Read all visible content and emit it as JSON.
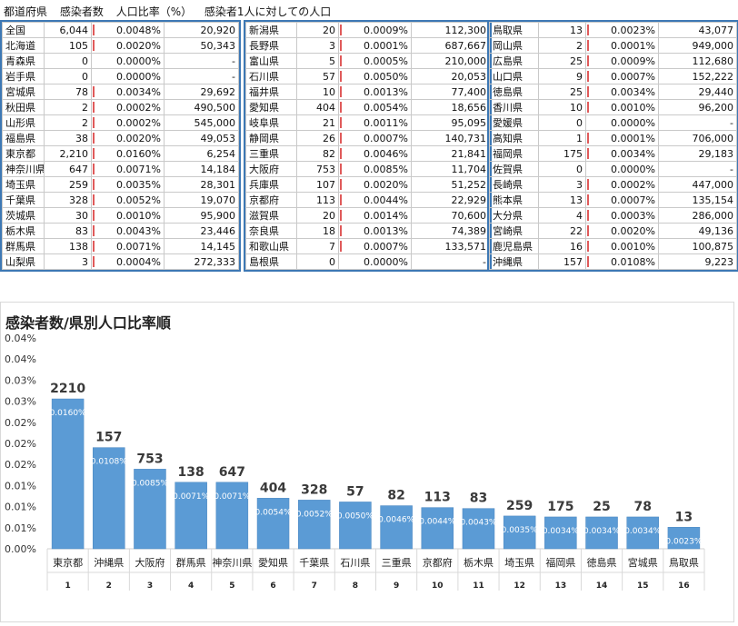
{
  "header": [
    "都道府県",
    "感染者数",
    "人口比率（%）",
    "感染者1人に対しての人口"
  ],
  "rows": [
    [
      "全国",
      6044,
      "0.0048%",
      "20,920"
    ],
    [
      "北海道",
      105,
      "0.0020%",
      "50,343"
    ],
    [
      "青森県",
      0,
      "0.0000%",
      "-"
    ],
    [
      "岩手県",
      0,
      "0.0000%",
      "-"
    ],
    [
      "宮城県",
      78,
      "0.0034%",
      "29,692"
    ],
    [
      "秋田県",
      2,
      "0.0002%",
      "490,500"
    ],
    [
      "山形県",
      2,
      "0.0002%",
      "545,000"
    ],
    [
      "福島県",
      38,
      "0.0020%",
      "49,053"
    ],
    [
      "東京都",
      2210,
      "0.0160%",
      "6,254"
    ],
    [
      "神奈川県",
      647,
      "0.0071%",
      "14,184"
    ],
    [
      "埼玉県",
      259,
      "0.0035%",
      "28,301"
    ],
    [
      "千葉県",
      328,
      "0.0052%",
      "19,070"
    ],
    [
      "茨城県",
      30,
      "0.0010%",
      "95,900"
    ],
    [
      "栃木県",
      83,
      "0.0043%",
      "23,446"
    ],
    [
      "群馬県",
      138,
      "0.0071%",
      "14,145"
    ],
    [
      "山梨県",
      3,
      "0.0004%",
      "272,333"
    ],
    [
      "新潟県",
      20,
      "0.0009%",
      "112,300"
    ],
    [
      "長野県",
      3,
      "0.0001%",
      "687,667"
    ],
    [
      "富山県",
      5,
      "0.0005%",
      "210,000"
    ],
    [
      "石川県",
      57,
      "0.0050%",
      "20,053"
    ],
    [
      "福井県",
      10,
      "0.0013%",
      "77,400"
    ],
    [
      "愛知県",
      404,
      "0.0054%",
      "18,656"
    ],
    [
      "岐阜県",
      21,
      "0.0011%",
      "95,095"
    ],
    [
      "静岡県",
      26,
      "0.0007%",
      "140,731"
    ],
    [
      "三重県",
      82,
      "0.0046%",
      "21,841"
    ],
    [
      "大阪府",
      753,
      "0.0085%",
      "11,704"
    ],
    [
      "兵庫県",
      107,
      "0.0020%",
      "51,252"
    ],
    [
      "京都府",
      113,
      "0.0044%",
      "22,929"
    ],
    [
      "滋賀県",
      20,
      "0.0014%",
      "70,600"
    ],
    [
      "奈良県",
      18,
      "0.0013%",
      "74,389"
    ],
    [
      "和歌山県",
      7,
      "0.0007%",
      "133,571"
    ],
    [
      "島根県",
      0,
      "0.0000%",
      "-"
    ],
    [
      "鳥取県",
      13,
      "0.0023%",
      "43,077"
    ],
    [
      "岡山県",
      2,
      "0.0001%",
      "949,000"
    ],
    [
      "広島県",
      25,
      "0.0009%",
      "112,680"
    ],
    [
      "山口県",
      9,
      "0.0007%",
      "152,222"
    ],
    [
      "徳島県",
      25,
      "0.0034%",
      "29,440"
    ],
    [
      "香川県",
      10,
      "0.0010%",
      "96,200"
    ],
    [
      "愛媛県",
      0,
      "0.0000%",
      "-"
    ],
    [
      "高知県",
      1,
      "0.0001%",
      "706,000"
    ],
    [
      "福岡県",
      175,
      "0.0034%",
      "29,183"
    ],
    [
      "佐賀県",
      0,
      "0.0000%",
      "-"
    ],
    [
      "長崎県",
      3,
      "0.0002%",
      "447,000"
    ],
    [
      "熊本県",
      13,
      "0.0007%",
      "135,154"
    ],
    [
      "大分県",
      4,
      "0.0003%",
      "286,000"
    ],
    [
      "宮崎県",
      22,
      "0.0020%",
      "49,136"
    ],
    [
      "鹿児島県",
      16,
      "0.0010%",
      "100,875"
    ],
    [
      "沖縄県",
      157,
      "0.0108%",
      "9,223"
    ]
  ],
  "colors": {
    "bar": "#5b9bd5",
    "databar": "#f06d6d",
    "border": "#3d78b4"
  },
  "chart_data": {
    "type": "bar",
    "title": "感染者数/県別人口比率順",
    "categories": [
      "東京都",
      "沖縄県",
      "大阪府",
      "群馬県",
      "神奈川県",
      "愛知県",
      "千葉県",
      "石川県",
      "三重県",
      "京都府",
      "栃木県",
      "埼玉県",
      "福岡県",
      "徳島県",
      "宮城県",
      "鳥取県"
    ],
    "ranks": [
      1,
      2,
      3,
      4,
      5,
      6,
      7,
      8,
      9,
      10,
      11,
      12,
      13,
      14,
      15,
      16
    ],
    "counts": [
      2210,
      157,
      753,
      138,
      647,
      404,
      328,
      57,
      82,
      113,
      83,
      259,
      175,
      25,
      78,
      13
    ],
    "values": [
      0.016,
      0.0108,
      0.0085,
      0.0071,
      0.0071,
      0.0054,
      0.0052,
      0.005,
      0.0046,
      0.0044,
      0.0043,
      0.0035,
      0.0034,
      0.0034,
      0.0034,
      0.0023
    ],
    "value_labels": [
      "0.0160%",
      "0.0108%",
      "0.0085%",
      "0.0071%",
      "0.0071%",
      "0.0054%",
      "0.0052%",
      "0.0050%",
      "0.0046%",
      "0.0044%",
      "0.0043%",
      "0.0035%",
      "0.0034%",
      "0.0034%",
      "0.0034%",
      "0.0023%"
    ],
    "yticks": [
      "0.00%",
      "0.01%",
      "0.01%",
      "0.01%",
      "0.02%",
      "0.02%",
      "0.02%",
      "0.03%",
      "0.03%",
      "0.04%",
      "0.04%"
    ],
    "ylim": [
      0,
      0.0225
    ],
    "grid": false,
    "legend": "none"
  }
}
